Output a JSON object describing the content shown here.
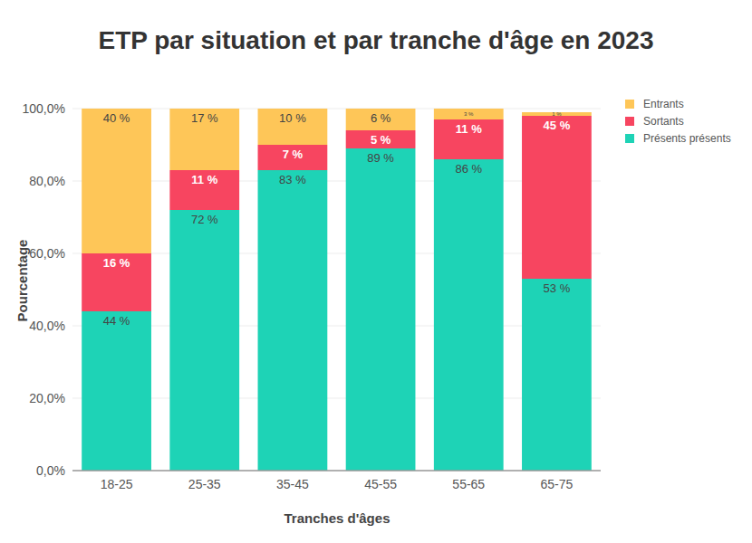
{
  "chart_data": {
    "type": "bar",
    "title": "ETP par situation et par tranche d'âge en 2023",
    "x_label": "Tranches d'âges",
    "y_label": "Pourcentage",
    "categories": [
      "18-25",
      "25-35",
      "35-45",
      "45-55",
      "55-65",
      "65-75"
    ],
    "stacked": true,
    "data_labels": true,
    "grid": true,
    "legend": "top-right",
    "ylim": [
      0,
      100
    ],
    "yticks": [
      {
        "value": 0,
        "label": "0,0%"
      },
      {
        "value": 20,
        "label": "20,0%"
      },
      {
        "value": 40,
        "label": "40,0%"
      },
      {
        "value": 60,
        "label": "60,0%"
      },
      {
        "value": 80,
        "label": "80,0%"
      },
      {
        "value": 100,
        "label": "100,0%"
      }
    ],
    "series": [
      {
        "name": "Présents présents",
        "color": "#1ed3b6",
        "values": [
          44,
          72,
          83,
          89,
          86,
          53
        ],
        "value_labels": [
          "44 %",
          "72 %",
          "83 %",
          "89 %",
          "86 %",
          "53 %"
        ]
      },
      {
        "name": "Sortants",
        "color": "#f74560",
        "values": [
          16,
          11,
          7,
          5,
          11,
          45
        ],
        "value_labels": [
          "16 %",
          "11 %",
          "7 %",
          "5 %",
          "11 %",
          "45 %"
        ]
      },
      {
        "name": "Entrants",
        "color": "#fec658",
        "values": [
          40,
          17,
          10,
          6,
          3,
          1
        ],
        "value_labels": [
          "40 %",
          "17 %",
          "10 %",
          "6 %",
          "3 %",
          "1 %"
        ]
      }
    ]
  }
}
